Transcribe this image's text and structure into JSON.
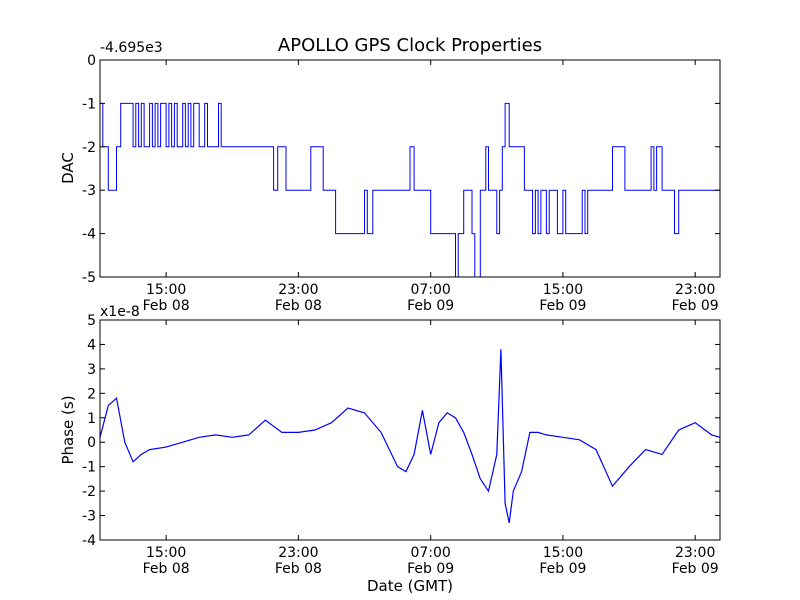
{
  "figure": {
    "title": "APOLLO GPS Clock Properties",
    "xlabel": "Date (GMT)"
  },
  "chart_data": [
    {
      "type": "line",
      "title": "APOLLO GPS Clock Properties",
      "ylabel": "DAC",
      "offset_label": "-4.695e3",
      "ylim": [
        -5,
        0
      ],
      "yticks": [
        0,
        -1,
        -2,
        -3,
        -4,
        -5
      ],
      "ytick_labels": [
        "0",
        "-1",
        "-2",
        "-3",
        "-4",
        "-5"
      ],
      "xlim": [
        "2014-02-08 11:00",
        "2014-02-10 00:30"
      ],
      "xticks": [
        "2014-02-08 15:00",
        "2014-02-08 23:00",
        "2014-02-09 07:00",
        "2014-02-09 15:00",
        "2014-02-09 23:00"
      ],
      "xtick_labels": [
        [
          "15:00",
          "Feb 08"
        ],
        [
          "23:00",
          "Feb 08"
        ],
        [
          "07:00",
          "Feb 09"
        ],
        [
          "15:00",
          "Feb 09"
        ],
        [
          "23:00",
          "Feb 09"
        ]
      ],
      "grid": false,
      "color": "#0000ff",
      "series": [
        {
          "x": [
            "2014-02-08 11:00",
            "2014-02-08 11:10",
            "2014-02-08 11:30",
            "2014-02-08 12:00",
            "2014-02-08 12:15",
            "2014-02-08 12:30",
            "2014-02-08 13:00",
            "2014-02-08 13:10",
            "2014-02-08 13:20",
            "2014-02-08 13:30",
            "2014-02-08 13:40",
            "2014-02-08 14:00",
            "2014-02-08 14:10",
            "2014-02-08 14:20",
            "2014-02-08 14:30",
            "2014-02-08 14:40",
            "2014-02-08 15:00",
            "2014-02-08 15:10",
            "2014-02-08 15:20",
            "2014-02-08 15:30",
            "2014-02-08 15:40",
            "2014-02-08 16:00",
            "2014-02-08 16:10",
            "2014-02-08 16:20",
            "2014-02-08 16:30",
            "2014-02-08 16:40",
            "2014-02-08 17:00",
            "2014-02-08 17:10",
            "2014-02-08 17:20",
            "2014-02-08 17:30",
            "2014-02-08 18:00",
            "2014-02-08 18:10",
            "2014-02-08 18:20",
            "2014-02-08 18:30",
            "2014-02-08 21:30",
            "2014-02-08 21:45",
            "2014-02-08 22:00",
            "2014-02-08 22:15",
            "2014-02-08 23:30",
            "2014-02-08 23:45",
            "2014-02-09 00:30",
            "2014-02-09 00:45",
            "2014-02-09 01:00",
            "2014-02-09 01:15",
            "2014-02-09 02:30",
            "2014-02-09 03:00",
            "2014-02-09 03:10",
            "2014-02-09 03:30",
            "2014-02-09 03:40",
            "2014-02-09 05:30",
            "2014-02-09 05:45",
            "2014-02-09 06:00",
            "2014-02-09 07:00",
            "2014-02-09 08:00",
            "2014-02-09 08:30",
            "2014-02-09 08:40",
            "2014-02-09 09:00",
            "2014-02-09 09:30",
            "2014-02-09 09:40",
            "2014-02-09 10:00",
            "2014-02-09 10:20",
            "2014-02-09 10:30",
            "2014-02-09 11:00",
            "2014-02-09 11:10",
            "2014-02-09 11:20",
            "2014-02-09 11:30",
            "2014-02-09 11:45",
            "2014-02-09 12:00",
            "2014-02-09 12:10",
            "2014-02-09 12:20",
            "2014-02-09 12:40",
            "2014-02-09 13:00",
            "2014-02-09 13:10",
            "2014-02-09 13:20",
            "2014-02-09 13:30",
            "2014-02-09 13:40",
            "2014-02-09 14:00",
            "2014-02-09 14:10",
            "2014-02-09 14:20",
            "2014-02-09 14:40",
            "2014-02-09 15:00",
            "2014-02-09 15:10",
            "2014-02-09 15:30",
            "2014-02-09 16:00",
            "2014-02-09 16:10",
            "2014-02-09 16:20",
            "2014-02-09 16:30",
            "2014-02-09 16:40",
            "2014-02-09 18:00",
            "2014-02-09 18:45",
            "2014-02-09 19:00",
            "2014-02-09 20:20",
            "2014-02-09 20:30",
            "2014-02-09 20:40",
            "2014-02-09 21:00",
            "2014-02-09 21:30",
            "2014-02-09 21:45",
            "2014-02-09 22:00",
            "2014-02-10 00:30"
          ],
          "y": [
            -1,
            -2,
            -3,
            -2,
            -1,
            -1,
            -2,
            -1,
            -2,
            -1,
            -2,
            -1,
            -2,
            -1,
            -2,
            -1,
            -2,
            -1,
            -2,
            -1,
            -2,
            -1,
            -2,
            -1,
            -2,
            -1,
            -2,
            -2,
            -1,
            -2,
            -2,
            -1,
            -2,
            -2,
            -3,
            -2,
            -2,
            -3,
            -3,
            -2,
            -3,
            -3,
            -3,
            -4,
            -4,
            -3,
            -4,
            -3,
            -3,
            -3,
            -2,
            -3,
            -4,
            -4,
            -5,
            -4,
            -3,
            -4,
            -5,
            -3,
            -2,
            -3,
            -4,
            -3,
            -2,
            -1,
            -2,
            -2,
            -2,
            -2,
            -3,
            -3,
            -4,
            -3,
            -4,
            -3,
            -4,
            -3,
            -3,
            -4,
            -3,
            -4,
            -4,
            -4,
            -3,
            -4,
            -3,
            -3,
            -2,
            -3,
            -3,
            -2,
            -3,
            -2,
            -3,
            -3,
            -4,
            -3,
            -3
          ]
        }
      ]
    },
    {
      "type": "line",
      "ylabel": "Phase (s)",
      "offset_label": "x1e-8",
      "ylim": [
        -4,
        5
      ],
      "yticks": [
        5,
        4,
        3,
        2,
        1,
        0,
        -1,
        -2,
        -3,
        -4
      ],
      "ytick_labels": [
        "5",
        "4",
        "3",
        "2",
        "1",
        "0",
        "-1",
        "-2",
        "-3",
        "-4"
      ],
      "xlim": [
        "2014-02-08 11:00",
        "2014-02-10 00:30"
      ],
      "xticks": [
        "2014-02-08 15:00",
        "2014-02-08 23:00",
        "2014-02-09 07:00",
        "2014-02-09 15:00",
        "2014-02-09 23:00"
      ],
      "xtick_labels": [
        [
          "15:00",
          "Feb 08"
        ],
        [
          "23:00",
          "Feb 08"
        ],
        [
          "07:00",
          "Feb 09"
        ],
        [
          "15:00",
          "Feb 09"
        ],
        [
          "23:00",
          "Feb 09"
        ]
      ],
      "xlabel": "Date (GMT)",
      "grid": false,
      "color": "#0000ff",
      "series": [
        {
          "x": [
            "2014-02-08 11:00",
            "2014-02-08 11:30",
            "2014-02-08 12:00",
            "2014-02-08 12:30",
            "2014-02-08 13:00",
            "2014-02-08 13:30",
            "2014-02-08 14:00",
            "2014-02-08 15:00",
            "2014-02-08 16:00",
            "2014-02-08 17:00",
            "2014-02-08 18:00",
            "2014-02-08 19:00",
            "2014-02-08 20:00",
            "2014-02-08 21:00",
            "2014-02-08 22:00",
            "2014-02-08 23:00",
            "2014-02-09 00:00",
            "2014-02-09 01:00",
            "2014-02-09 02:00",
            "2014-02-09 03:00",
            "2014-02-09 04:00",
            "2014-02-09 05:00",
            "2014-02-09 05:30",
            "2014-02-09 06:00",
            "2014-02-09 06:30",
            "2014-02-09 07:00",
            "2014-02-09 07:30",
            "2014-02-09 08:00",
            "2014-02-09 08:30",
            "2014-02-09 09:00",
            "2014-02-09 09:30",
            "2014-02-09 10:00",
            "2014-02-09 10:30",
            "2014-02-09 11:00",
            "2014-02-09 11:15",
            "2014-02-09 11:30",
            "2014-02-09 11:45",
            "2014-02-09 12:00",
            "2014-02-09 12:30",
            "2014-02-09 13:00",
            "2014-02-09 13:30",
            "2014-02-09 14:00",
            "2014-02-09 15:00",
            "2014-02-09 16:00",
            "2014-02-09 17:00",
            "2014-02-09 18:00",
            "2014-02-09 19:00",
            "2014-02-09 20:00",
            "2014-02-09 21:00",
            "2014-02-09 22:00",
            "2014-02-09 23:00",
            "2014-02-10 00:00",
            "2014-02-10 00:30"
          ],
          "y": [
            0.2,
            1.5,
            1.8,
            0.0,
            -0.8,
            -0.5,
            -0.3,
            -0.2,
            0.0,
            0.2,
            0.3,
            0.2,
            0.3,
            0.9,
            0.4,
            0.4,
            0.5,
            0.8,
            1.4,
            1.2,
            0.4,
            -1.0,
            -1.2,
            -0.5,
            1.3,
            -0.5,
            0.8,
            1.2,
            1.0,
            0.4,
            -0.5,
            -1.5,
            -2.0,
            -0.5,
            3.8,
            -2.5,
            -3.3,
            -2.0,
            -1.2,
            0.4,
            0.4,
            0.3,
            0.2,
            0.1,
            -0.3,
            -1.8,
            -1.0,
            -0.3,
            -0.5,
            0.5,
            0.8,
            0.3,
            0.2
          ]
        }
      ]
    }
  ]
}
